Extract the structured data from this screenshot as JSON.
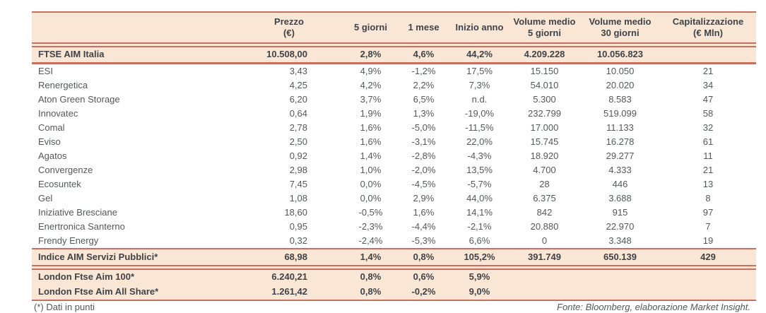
{
  "table": {
    "headers": {
      "name": "",
      "prezzo": "Prezzo\n(€)",
      "d5": "5 giorni",
      "m1": "1 mese",
      "ytd": "Inizio anno",
      "vol5": "Volume medio\n5 giorni",
      "vol30": "Volume medio\n30 giorni",
      "cap": "Capitalizzazione\n(€ Mln)"
    },
    "index_row": {
      "name": "FTSE AIM Italia",
      "prezzo": "10.508,00",
      "d5": "2,8%",
      "m1": "4,6%",
      "ytd": "44,2%",
      "vol5": "4.209.228",
      "vol30": "10.056.823",
      "cap": ""
    },
    "company_rows": [
      {
        "name": "ESI",
        "prezzo": "3,43",
        "d5": "4,9%",
        "m1": "-1,2%",
        "ytd": "17,5%",
        "vol5": "15.150",
        "vol30": "10.050",
        "cap": "21"
      },
      {
        "name": "Renergetica",
        "prezzo": "4,25",
        "d5": "4,2%",
        "m1": "2,2%",
        "ytd": "7,3%",
        "vol5": "54.010",
        "vol30": "20.020",
        "cap": "34"
      },
      {
        "name": "Aton Green Storage",
        "prezzo": "6,20",
        "d5": "3,7%",
        "m1": "6,5%",
        "ytd": "n.d.",
        "vol5": "5.300",
        "vol30": "8.583",
        "cap": "47"
      },
      {
        "name": "Innovatec",
        "prezzo": "0,64",
        "d5": "1,9%",
        "m1": "1,3%",
        "ytd": "-19,0%",
        "vol5": "232.799",
        "vol30": "519.099",
        "cap": "58"
      },
      {
        "name": "Comal",
        "prezzo": "2,78",
        "d5": "1,6%",
        "m1": "-5,0%",
        "ytd": "-11,5%",
        "vol5": "17.000",
        "vol30": "11.133",
        "cap": "32"
      },
      {
        "name": "Eviso",
        "prezzo": "2,50",
        "d5": "1,6%",
        "m1": "-3,1%",
        "ytd": "22,0%",
        "vol5": "15.745",
        "vol30": "16.278",
        "cap": "61"
      },
      {
        "name": "Agatos",
        "prezzo": "0,92",
        "d5": "1,4%",
        "m1": "-2,8%",
        "ytd": "-4,3%",
        "vol5": "18.920",
        "vol30": "29.277",
        "cap": "11"
      },
      {
        "name": "Convergenze",
        "prezzo": "2,98",
        "d5": "1,0%",
        "m1": "-2,0%",
        "ytd": "13,5%",
        "vol5": "4.700",
        "vol30": "4.333",
        "cap": "21"
      },
      {
        "name": "Ecosuntek",
        "prezzo": "7,45",
        "d5": "0,0%",
        "m1": "-4,5%",
        "ytd": "-5,7%",
        "vol5": "28",
        "vol30": "446",
        "cap": "13"
      },
      {
        "name": "Gel",
        "prezzo": "1,08",
        "d5": "0,0%",
        "m1": "2,9%",
        "ytd": "44,0%",
        "vol5": "6.375",
        "vol30": "3.688",
        "cap": "8"
      },
      {
        "name": "Iniziative Bresciane",
        "prezzo": "18,60",
        "d5": "-0,5%",
        "m1": "1,6%",
        "ytd": "14,1%",
        "vol5": "842",
        "vol30": "915",
        "cap": "97"
      },
      {
        "name": "Enertronica Santerno",
        "prezzo": "0,95",
        "d5": "-2,3%",
        "m1": "-4,4%",
        "ytd": "-2,1%",
        "vol5": "20.880",
        "vol30": "22.970",
        "cap": "7"
      },
      {
        "name": "Frendy Energy",
        "prezzo": "0,32",
        "d5": "-2,4%",
        "m1": "-5,3%",
        "ytd": "6,6%",
        "vol5": "0",
        "vol30": "3.348",
        "cap": "19"
      }
    ],
    "aim_services_row": {
      "name": "Indice AIM Servizi Pubblici*",
      "prezzo": "68,98",
      "d5": "1,4%",
      "m1": "0,8%",
      "ytd": "105,2%",
      "vol5": "391.749",
      "vol30": "650.139",
      "cap": "429"
    },
    "london_rows": [
      {
        "name": "London Ftse Aim 100*",
        "prezzo": "6.240,21",
        "d5": "0,8%",
        "m1": "0,6%",
        "ytd": "5,9%",
        "vol5": "",
        "vol30": "",
        "cap": ""
      },
      {
        "name": "London Ftse Aim All Share*",
        "prezzo": "1.261,42",
        "d5": "0,8%",
        "m1": "-0,2%",
        "ytd": "9,0%",
        "vol5": "",
        "vol30": "",
        "cap": ""
      }
    ]
  },
  "footer": {
    "footnote": "(*) Dati in punti",
    "source": "Fonte: Bloomberg, elaborazione Market Insight."
  },
  "colors": {
    "accent_line": "#c7705f",
    "band_background": "#fae6d5",
    "heading_text": "#3f4347",
    "body_text": "#55585a"
  }
}
